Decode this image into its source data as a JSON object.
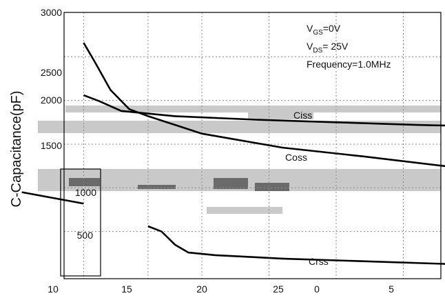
{
  "chart_data": {
    "type": "line",
    "title": "",
    "xlabel": "",
    "ylabel": "C-Capacitance(pF)",
    "ylim": [
      0,
      3000
    ],
    "y_ticks": [
      "500",
      "1000",
      "1500",
      "2000",
      "2500",
      "3000"
    ],
    "x_ticks": [
      "10",
      "15",
      "20",
      "25",
      "0",
      "5"
    ],
    "grid": true,
    "legend": "none",
    "conditions": {
      "vgs": {
        "prefix": "V",
        "sub": "GS",
        "suffix": "=0V"
      },
      "vds": {
        "prefix": "V",
        "sub": "DS",
        "suffix": "= 25V"
      },
      "frequency": "Frequency=1.0MHz"
    },
    "series": [
      {
        "name": "Ciss",
        "points": [
          [
            10.6,
            2060
          ],
          [
            11.2,
            1990
          ],
          [
            12.0,
            1880
          ],
          [
            14.0,
            1820
          ],
          [
            17.0,
            1780
          ],
          [
            20.0,
            1750
          ],
          [
            23.0,
            1720
          ],
          [
            26.0,
            1700
          ],
          [
            29.0,
            1680
          ],
          [
            31.0,
            1660
          ],
          [
            33.6,
            1640
          ]
        ]
      },
      {
        "name": "Coss",
        "points": [
          [
            10.6,
            2660
          ],
          [
            11.0,
            2450
          ],
          [
            11.6,
            2120
          ],
          [
            12.3,
            1900
          ],
          [
            13.0,
            1820
          ],
          [
            15.0,
            1620
          ],
          [
            18.0,
            1460
          ],
          [
            21.0,
            1360
          ],
          [
            24.0,
            1250
          ],
          [
            27.0,
            1150
          ],
          [
            30.0,
            1050
          ],
          [
            33.6,
            900
          ]
        ]
      },
      {
        "name": "Crss",
        "points": [
          [
            8.3,
            950
          ],
          [
            10.6,
            820
          ]
        ],
        "secondary": [
          [
            13.0,
            560
          ],
          [
            13.5,
            500
          ],
          [
            14.0,
            350
          ],
          [
            14.5,
            260
          ],
          [
            15.5,
            230
          ],
          [
            18.0,
            190
          ],
          [
            21.0,
            160
          ],
          [
            24.0,
            130
          ],
          [
            27.0,
            110
          ],
          [
            30.0,
            90
          ],
          [
            33.6,
            70
          ]
        ]
      }
    ]
  }
}
